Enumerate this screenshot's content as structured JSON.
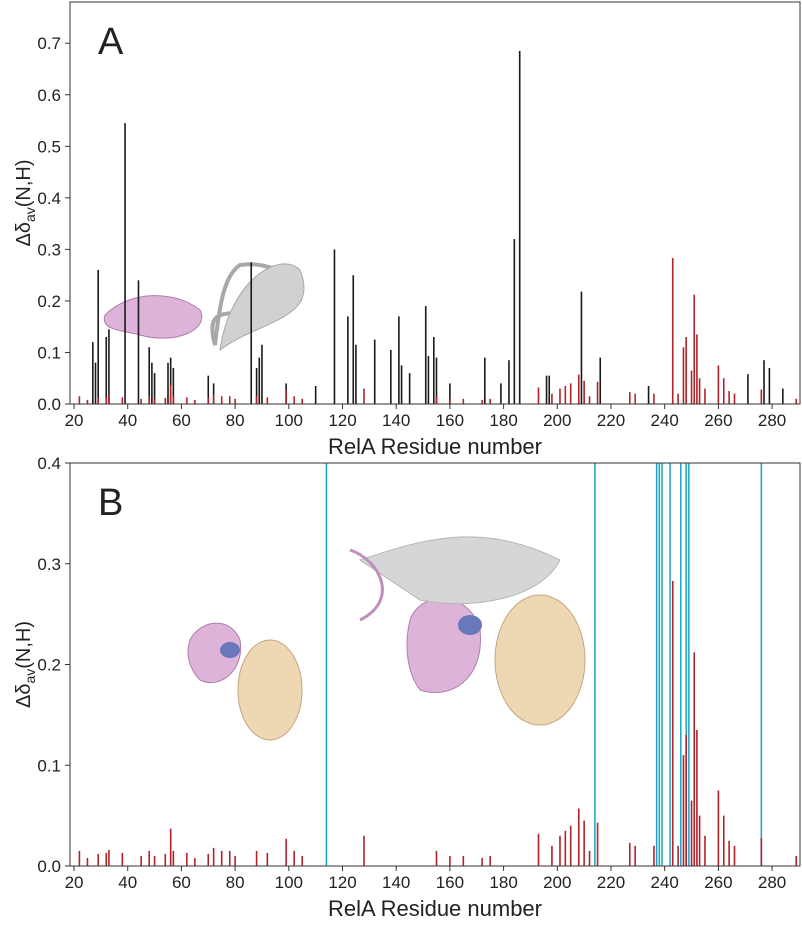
{
  "chart_data": [
    {
      "type": "bar",
      "panel_label": "A",
      "x_label": "RelA Residue number",
      "y_label": "Δδ",
      "y_label_sub": "av",
      "y_label_suffix": "(N,H)",
      "xlim": [
        18.5,
        290.4
      ],
      "ylim": [
        0,
        0.78
      ],
      "xticks": [
        20,
        40,
        60,
        80,
        100,
        120,
        140,
        160,
        180,
        200,
        220,
        240,
        260,
        280
      ],
      "yticks": [
        {
          "value": 0,
          "label": "0.0"
        },
        0.1,
        0.2,
        0.3,
        0.4,
        0.5,
        0.6,
        0.7
      ],
      "series": [
        {
          "color": "#1a1a1a",
          "x": [
            27,
            28,
            29,
            32,
            33,
            39,
            44,
            48,
            49,
            50,
            55,
            56,
            57,
            70,
            72,
            86,
            88,
            89,
            90,
            99,
            110,
            117,
            122,
            124,
            125,
            132,
            138,
            141,
            142,
            145,
            151,
            152,
            154,
            155,
            160,
            173,
            179,
            182,
            184,
            186,
            196,
            197,
            209,
            216,
            234,
            271,
            277,
            279,
            284
          ],
          "values": [
            0.12,
            0.08,
            0.26,
            0.13,
            0.145,
            0.545,
            0.24,
            0.11,
            0.08,
            0.06,
            0.08,
            0.09,
            0.07,
            0.055,
            0.04,
            0.275,
            0.07,
            0.09,
            0.115,
            0.04,
            0.035,
            0.3,
            0.17,
            0.25,
            0.115,
            0.125,
            0.105,
            0.17,
            0.075,
            0.06,
            0.19,
            0.093,
            0.13,
            0.09,
            0.04,
            0.09,
            0.04,
            0.085,
            0.32,
            0.685,
            0.055,
            0.055,
            0.218,
            0.09,
            0.035,
            0.058,
            0.085,
            0.07,
            0.03
          ]
        },
        {
          "color": "#b0242a",
          "x": [
            22,
            25,
            29,
            32,
            33,
            38,
            45,
            48,
            50,
            54,
            56,
            57,
            62,
            65,
            70,
            72,
            75,
            78,
            80,
            88,
            92,
            99,
            102,
            105,
            128,
            155,
            160,
            165,
            172,
            175,
            193,
            198,
            201,
            203,
            205,
            208,
            210,
            212,
            215,
            227,
            229,
            236,
            243,
            245,
            247,
            248,
            250,
            251,
            252,
            253,
            255,
            260,
            262,
            264,
            266,
            276,
            289
          ],
          "values": [
            0.015,
            0.008,
            0.012,
            0.013,
            0.016,
            0.013,
            0.01,
            0.015,
            0.01,
            0.012,
            0.037,
            0.015,
            0.013,
            0.008,
            0.012,
            0.018,
            0.015,
            0.015,
            0.01,
            0.015,
            0.013,
            0.027,
            0.015,
            0.01,
            0.03,
            0.015,
            0.01,
            0.01,
            0.008,
            0.01,
            0.032,
            0.02,
            0.03,
            0.035,
            0.04,
            0.057,
            0.045,
            0.015,
            0.043,
            0.023,
            0.02,
            0.02,
            0.283,
            0.02,
            0.11,
            0.13,
            0.065,
            0.212,
            0.135,
            0.05,
            0.03,
            0.075,
            0.05,
            0.025,
            0.02,
            0.028,
            0.01
          ]
        }
      ]
    },
    {
      "type": "bar",
      "panel_label": "B",
      "x_label": "RelA Residue number",
      "y_label": "Δδ",
      "y_label_sub": "av",
      "y_label_suffix": "(N,H)",
      "xlim": [
        18.5,
        290.4
      ],
      "ylim": [
        0,
        0.4
      ],
      "xticks": [
        20,
        40,
        60,
        80,
        100,
        120,
        140,
        160,
        180,
        200,
        220,
        240,
        260,
        280
      ],
      "yticks": [
        {
          "value": 0,
          "label": "0.0"
        },
        0.1,
        0.2,
        0.3,
        0.4
      ],
      "highlight_color": "#1ba3c6",
      "highlight_x": [
        114,
        214,
        237,
        238,
        239,
        242,
        246,
        248,
        249,
        276
      ],
      "series": [
        {
          "color": "#b0242a",
          "x": [
            22,
            25,
            29,
            32,
            33,
            38,
            45,
            48,
            50,
            54,
            56,
            57,
            62,
            65,
            70,
            72,
            75,
            78,
            80,
            88,
            92,
            99,
            102,
            105,
            128,
            155,
            160,
            165,
            172,
            175,
            193,
            198,
            201,
            203,
            205,
            208,
            210,
            212,
            215,
            227,
            229,
            236,
            243,
            245,
            247,
            248,
            250,
            251,
            252,
            253,
            255,
            260,
            262,
            264,
            266,
            276,
            289
          ],
          "values": [
            0.015,
            0.008,
            0.012,
            0.013,
            0.016,
            0.013,
            0.01,
            0.015,
            0.01,
            0.012,
            0.037,
            0.015,
            0.013,
            0.008,
            0.012,
            0.018,
            0.015,
            0.015,
            0.01,
            0.015,
            0.013,
            0.027,
            0.015,
            0.01,
            0.03,
            0.015,
            0.01,
            0.01,
            0.008,
            0.01,
            0.032,
            0.02,
            0.03,
            0.035,
            0.04,
            0.057,
            0.045,
            0.015,
            0.043,
            0.023,
            0.02,
            0.02,
            0.283,
            0.02,
            0.11,
            0.13,
            0.065,
            0.212,
            0.135,
            0.05,
            0.03,
            0.075,
            0.05,
            0.025,
            0.02,
            0.028,
            0.01
          ]
        }
      ]
    }
  ]
}
